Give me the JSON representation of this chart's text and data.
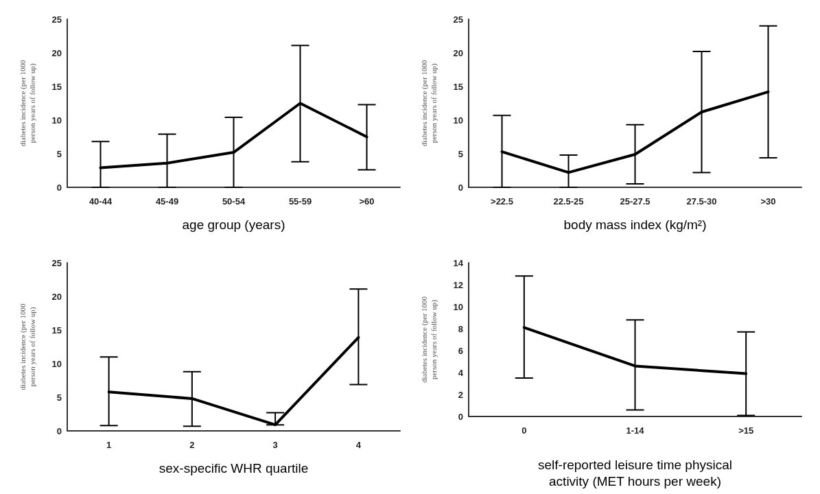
{
  "chart_data": [
    {
      "type": "line",
      "xlabel": "age group (years)",
      "ylabel": "diabetes incidence (per 1000 person years of follow up)",
      "categories": [
        "40-44",
        "45-49",
        "50-54",
        "55-59",
        ">60"
      ],
      "series": [
        {
          "color": "#000000",
          "values": [
            2.9,
            3.6,
            5.2,
            12.5,
            7.5
          ],
          "errors": [
            [
              0,
              6.8
            ],
            [
              0,
              7.9
            ],
            [
              0,
              10.4
            ],
            [
              3.8,
              21.1
            ],
            [
              2.6,
              12.3
            ]
          ]
        }
      ],
      "ylim": [
        0,
        25
      ],
      "yticks": [
        0,
        5,
        10,
        15,
        20,
        25
      ],
      "marker": "none",
      "line_style": "solid"
    },
    {
      "type": "line",
      "xlabel": "body mass index (kg/m²)",
      "ylabel": "diabetes incidence (per 1000 person years of follow up)",
      "categories": [
        ">22.5",
        "22.5-25",
        "25-27.5",
        "27.5-30",
        ">30"
      ],
      "series": [
        {
          "color": "#000000",
          "values": [
            5.3,
            2.2,
            4.9,
            11.2,
            14.2
          ],
          "errors": [
            [
              0,
              10.7
            ],
            [
              0,
              4.8
            ],
            [
              0.5,
              9.3
            ],
            [
              2.2,
              20.2
            ],
            [
              4.4,
              24.0
            ]
          ]
        }
      ],
      "ylim": [
        0,
        25
      ],
      "yticks": [
        0,
        5,
        10,
        15,
        20,
        25
      ],
      "marker": "none",
      "line_style": "solid"
    },
    {
      "type": "line",
      "xlabel": "sex-specific WHR quartile",
      "ylabel": "diabetes incidence (per 1000 person years of follow up)",
      "categories": [
        "1",
        "2",
        "3",
        "4"
      ],
      "series": [
        {
          "color": "#000000",
          "values": [
            5.8,
            4.8,
            0.9,
            13.9
          ],
          "errors": [
            [
              0.8,
              11.0
            ],
            [
              0.7,
              8.8
            ],
            [
              0.9,
              2.7
            ],
            [
              6.9,
              21.1
            ]
          ]
        }
      ],
      "ylim": [
        0,
        25
      ],
      "yticks": [
        0,
        5,
        10,
        15,
        20,
        25
      ],
      "marker": "none",
      "line_style": "solid"
    },
    {
      "type": "line",
      "xlabel": "self-reported leisure time physical activity (MET hours per week)",
      "ylabel": "diabetes incidence (per 1000 person years of follow up)",
      "categories": [
        "0",
        "1-14",
        ">15"
      ],
      "series": [
        {
          "color": "#000000",
          "values": [
            8.1,
            4.6,
            3.9
          ],
          "errors": [
            [
              3.5,
              12.8
            ],
            [
              0.6,
              8.8
            ],
            [
              0.1,
              7.7
            ]
          ]
        }
      ],
      "ylim": [
        0,
        14
      ],
      "yticks": [
        0,
        2,
        4,
        6,
        8,
        10,
        12,
        14
      ],
      "marker": "none",
      "line_style": "solid"
    }
  ]
}
